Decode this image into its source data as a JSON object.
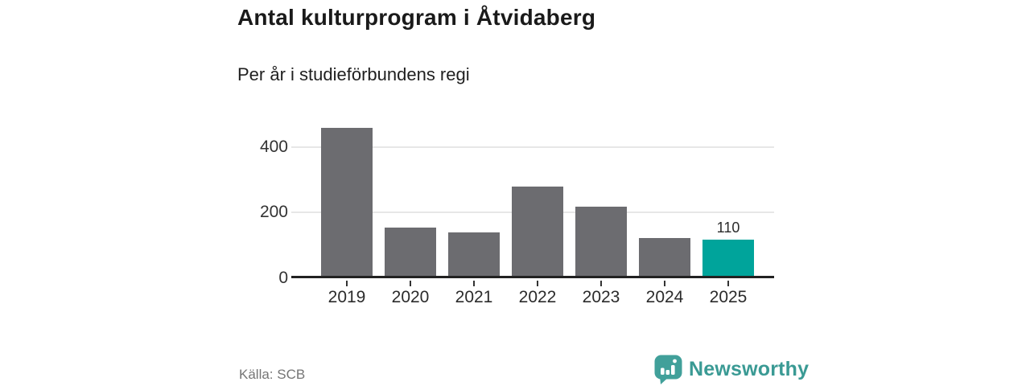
{
  "header": {
    "title": "Antal kulturprogram i Åtvidaberg",
    "subtitle": "Per år i studieförbundens regi"
  },
  "footer": {
    "source": "Källa: SCB",
    "brand": "Newsworthy"
  },
  "chart_data": {
    "type": "bar",
    "title": "Antal kulturprogram i Åtvidaberg",
    "subtitle": "Per år i studieförbundens regi",
    "categories": [
      "2019",
      "2020",
      "2021",
      "2022",
      "2023",
      "2024",
      "2025"
    ],
    "values": [
      450,
      148,
      133,
      272,
      210,
      115,
      110
    ],
    "highlight_index": 6,
    "annotations": [
      {
        "index": 6,
        "label": "110"
      }
    ],
    "xlabel": "",
    "ylabel": "",
    "ylim": [
      0,
      480
    ],
    "yticks": [
      0,
      200,
      400
    ],
    "grid": "horizontal",
    "legend": "none",
    "source": "Källa: SCB",
    "colors": {
      "bar": "#6c6c70",
      "highlight": "#00a49b",
      "gridline": "#e7e7e7",
      "axis": "#222222",
      "brand_teal": "#41a09a"
    }
  }
}
